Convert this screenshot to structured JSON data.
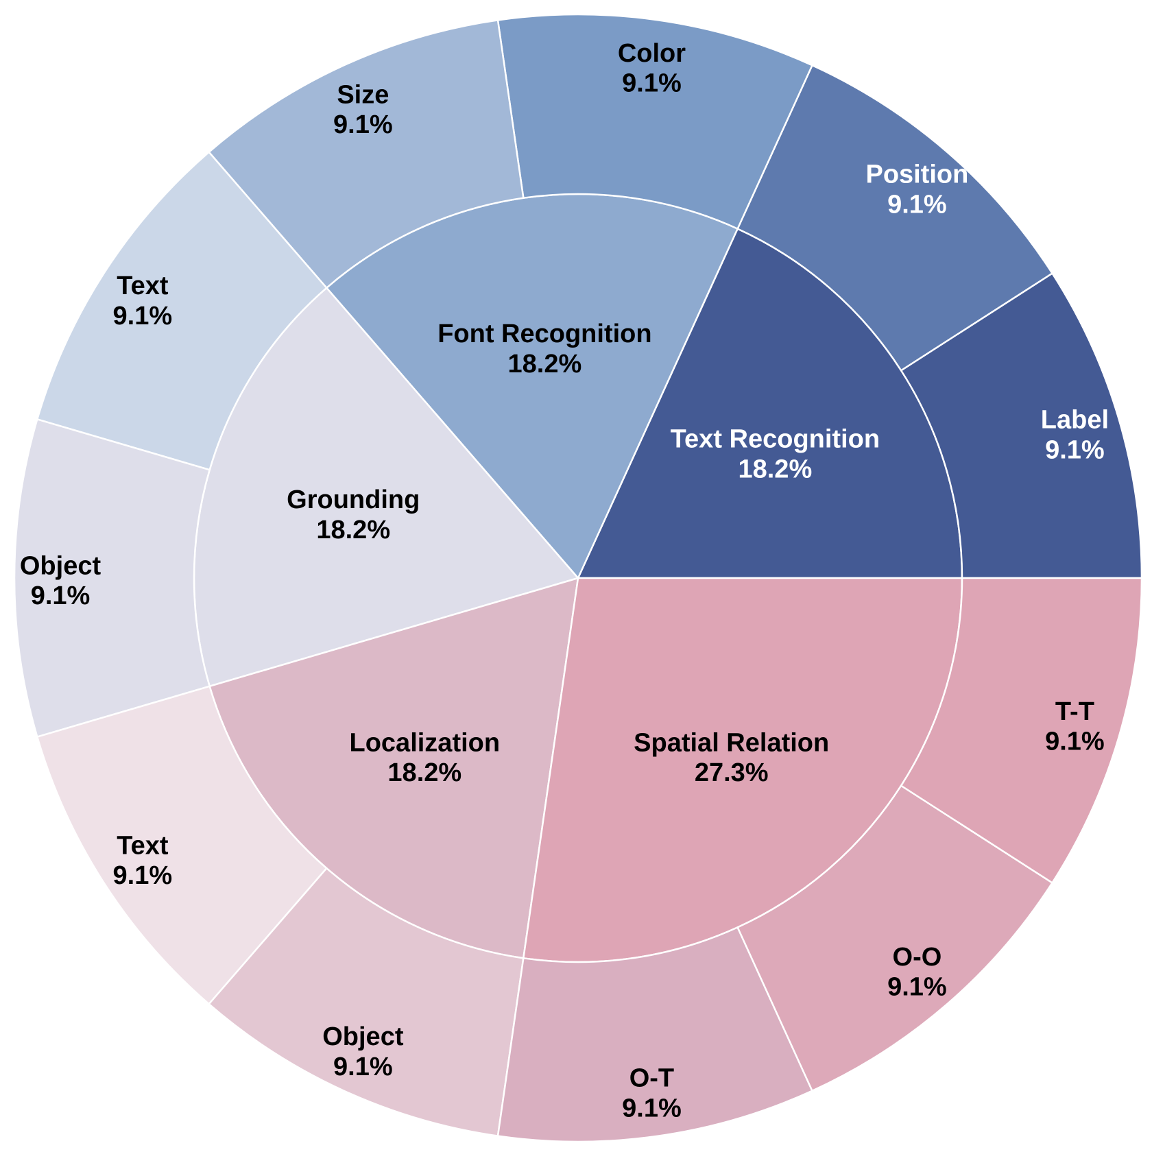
{
  "chart_data": {
    "type": "sunburst",
    "inner_ring": [
      {
        "label": "Text Recognition",
        "percent": "18.2%",
        "value": 2,
        "color": "#445a94",
        "text_color": "#ffffff"
      },
      {
        "label": "Font Recognition",
        "percent": "18.2%",
        "value": 2,
        "color": "#8eaacf",
        "text_color": "#000000"
      },
      {
        "label": "Grounding",
        "percent": "18.2%",
        "value": 2,
        "color": "#dedeea",
        "text_color": "#000000"
      },
      {
        "label": "Localization",
        "percent": "18.2%",
        "value": 2,
        "color": "#dcb9c7",
        "text_color": "#000000"
      },
      {
        "label": "Spatial Relation",
        "percent": "27.3%",
        "value": 3,
        "color": "#dea5b5",
        "text_color": "#000000"
      }
    ],
    "outer_ring": [
      {
        "label": "Label",
        "percent": "9.1%",
        "value": 1,
        "parent": "Text Recognition",
        "color": "#445a94",
        "text_color": "#ffffff"
      },
      {
        "label": "Position",
        "percent": "9.1%",
        "value": 1,
        "parent": "Text Recognition",
        "color": "#5e7aae",
        "text_color": "#ffffff"
      },
      {
        "label": "Color",
        "percent": "9.1%",
        "value": 1,
        "parent": "Font Recognition",
        "color": "#7b9bc6",
        "text_color": "#000000"
      },
      {
        "label": "Size",
        "percent": "9.1%",
        "value": 1,
        "parent": "Font Recognition",
        "color": "#a2b8d7",
        "text_color": "#000000"
      },
      {
        "label": "Text",
        "percent": "9.1%",
        "value": 1,
        "parent": "Grounding",
        "color": "#cbd7e8",
        "text_color": "#000000"
      },
      {
        "label": "Object",
        "percent": "9.1%",
        "value": 1,
        "parent": "Grounding",
        "color": "#dedeea",
        "text_color": "#000000"
      },
      {
        "label": "Text",
        "percent": "9.1%",
        "value": 1,
        "parent": "Localization",
        "color": "#efe1e7",
        "text_color": "#000000"
      },
      {
        "label": "Object",
        "percent": "9.1%",
        "value": 1,
        "parent": "Localization",
        "color": "#e3c7d2",
        "text_color": "#000000"
      },
      {
        "label": "O-T",
        "percent": "9.1%",
        "value": 1,
        "parent": "Spatial Relation",
        "color": "#d9afc0",
        "text_color": "#000000"
      },
      {
        "label": "O-O",
        "percent": "9.1%",
        "value": 1,
        "parent": "Spatial Relation",
        "color": "#dda9b9",
        "text_color": "#000000"
      },
      {
        "label": "T-T",
        "percent": "9.1%",
        "value": 1,
        "parent": "Spatial Relation",
        "color": "#dea5b5",
        "text_color": "#000000"
      }
    ],
    "start_direction": "east",
    "direction": "counterclockwise"
  }
}
